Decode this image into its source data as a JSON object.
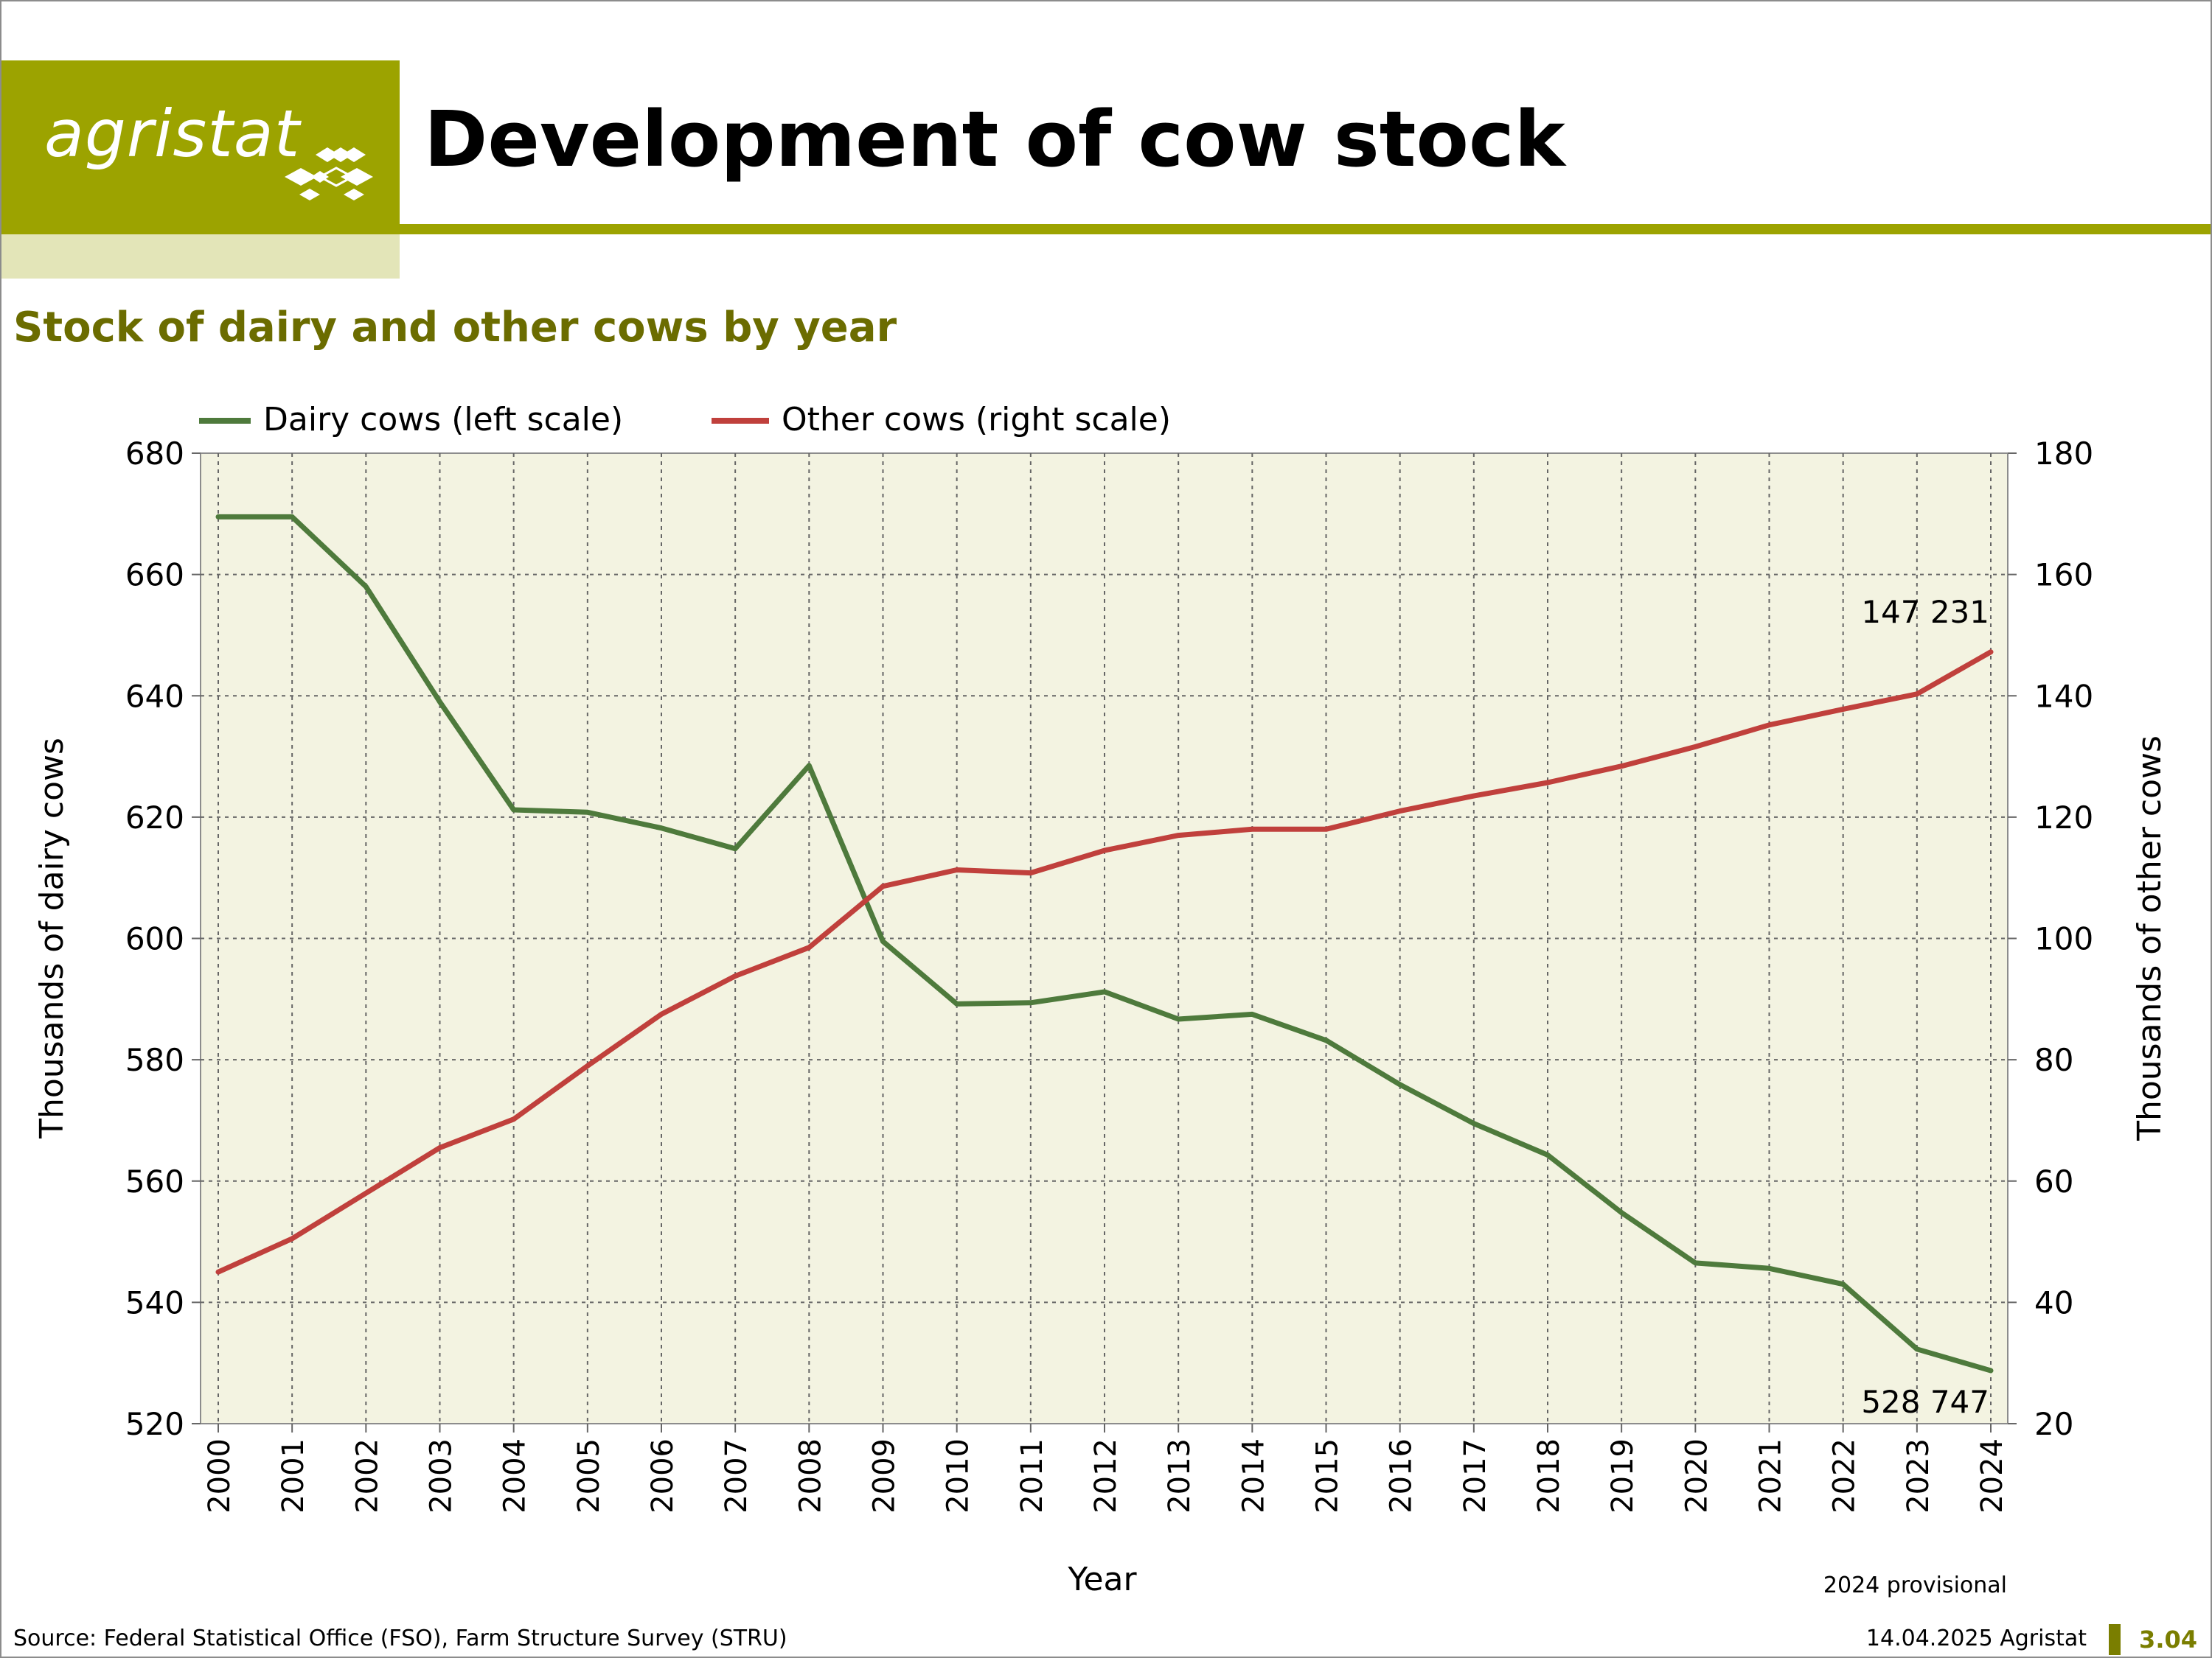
{
  "brand": {
    "logo_text": "agristat",
    "accent_color": "#9ca300",
    "light_color": "#e3e5b8",
    "title_color": "#6b6c00"
  },
  "page_title": "Development of cow stock",
  "subtitle": "Stock of dairy and other cows by year",
  "footer": {
    "source": "Source: Federal Statistical Office (FSO), Farm Structure Survey (STRU)",
    "date_org": "14.04.2025 Agristat",
    "page_number": "3.04"
  },
  "chart_data": {
    "type": "line",
    "title": "Stock of dairy and other cows by year",
    "xlabel": "Year",
    "ylabel_left": "Thousands of dairy cows",
    "ylabel_right": "Thousands of other cows",
    "ylim_left": [
      520,
      680
    ],
    "ylim_right": [
      20,
      180
    ],
    "yticks_left": [
      520,
      540,
      560,
      580,
      600,
      620,
      640,
      660,
      680
    ],
    "yticks_right": [
      20,
      40,
      60,
      80,
      100,
      120,
      140,
      160,
      180
    ],
    "grid": true,
    "legend_position": "top-left",
    "note": "2024 provisional",
    "x": [
      2000,
      2001,
      2002,
      2003,
      2004,
      2005,
      2006,
      2007,
      2008,
      2009,
      2010,
      2011,
      2012,
      2013,
      2014,
      2015,
      2016,
      2017,
      2018,
      2019,
      2020,
      2021,
      2022,
      2023,
      2024
    ],
    "series": [
      {
        "name": "Dairy cows (left scale)",
        "axis": "left",
        "color": "#4e7a3c",
        "values": [
          669.5,
          669.5,
          658,
          639,
          621.2,
          620.8,
          618.2,
          614.8,
          628.5,
          599.5,
          589.2,
          589.4,
          591.2,
          586.7,
          587.5,
          583.2,
          575.9,
          569.5,
          564.3,
          554.8,
          546.5,
          545.6,
          543,
          532.3,
          528.747
        ],
        "end_label": "528 747"
      },
      {
        "name": "Other cows (right scale)",
        "axis": "right",
        "color": "#c0403c",
        "values": [
          45,
          50.5,
          58,
          65.5,
          70.2,
          79,
          87.5,
          93.8,
          98.5,
          108.6,
          111.3,
          110.8,
          114.5,
          117,
          118,
          118,
          121,
          123.5,
          125.7,
          128.4,
          131.6,
          135.2,
          137.8,
          140.3,
          147.231
        ],
        "end_label": "147 231"
      }
    ]
  }
}
